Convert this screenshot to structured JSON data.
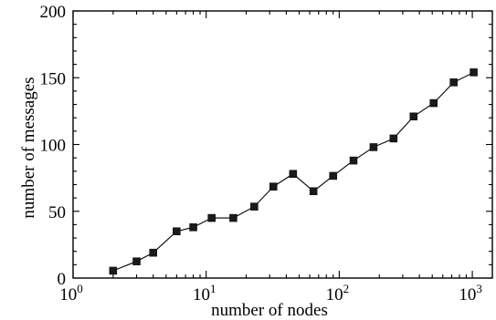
{
  "chart_data": {
    "type": "line",
    "title": "",
    "xlabel": "number of nodes",
    "ylabel": "number of messages",
    "x_scale": "log",
    "xlim": [
      1,
      1414
    ],
    "ylim": [
      0,
      200
    ],
    "grid": false,
    "x_ticks": [
      {
        "value": 1,
        "base": "10",
        "exp": "0"
      },
      {
        "value": 10,
        "base": "10",
        "exp": "1"
      },
      {
        "value": 100,
        "base": "10",
        "exp": "2"
      },
      {
        "value": 1000,
        "base": "10",
        "exp": "3"
      }
    ],
    "y_ticks": [
      0,
      50,
      100,
      150,
      200
    ],
    "marker": "square",
    "color": "#1a1a1a",
    "series": [
      {
        "x": [
          2,
          3,
          4,
          6,
          8,
          11,
          16,
          23,
          32,
          45,
          64,
          90,
          128,
          181,
          256,
          362,
          512,
          724,
          1024
        ],
        "y": [
          5.5,
          12.5,
          19,
          35,
          38,
          45,
          45,
          53.5,
          68.5,
          78,
          65,
          76.5,
          88,
          98,
          104.5,
          121,
          131,
          146.5,
          154
        ]
      }
    ]
  }
}
